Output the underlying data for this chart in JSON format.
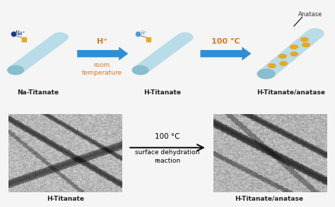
{
  "bg_color": "#f5f5f5",
  "tube_color": "#b8dde8",
  "tube_end_color": "#88bece",
  "na_dot_color": "#1a3a8a",
  "h_dot_color": "#5599cc",
  "yellow_dot_color": "#e8a820",
  "arrow_color": "#2d8fd5",
  "arrow_text_color": "#e07820",
  "anatase_label_color": "#333333",
  "label_color": "#222222",
  "label_na": "Na-Titanate",
  "label_h": "H-Titanate",
  "label_h_anatase": "H-Titanate/anatase",
  "label_anatase": "Anatase",
  "arrow1_top": "H⁺",
  "arrow1_bottom1": "room",
  "arrow1_bottom2": "temperature",
  "arrow2_top": "100 °C",
  "arrow_bottom_top": "100 °C",
  "arrow_bottom_mid": "surface dehydration",
  "arrow_bottom_bot": "reaction",
  "label_bottom_left": "H-Titanate",
  "label_bottom_right": "H-Titanate/anatase"
}
